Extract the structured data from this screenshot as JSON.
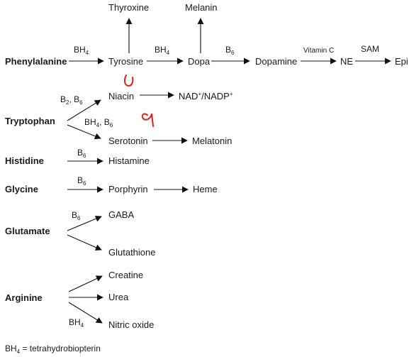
{
  "sources": {
    "phenylalanine": "Phenylalanine",
    "tryptophan": "Tryptophan",
    "histidine": "Histidine",
    "glycine": "Glycine",
    "glutamate": "Glutamate",
    "arginine": "Arginine"
  },
  "products": {
    "thyroxine": "Thyroxine",
    "melanin": "Melanin",
    "tyrosine": "Tyrosine",
    "dopa": "Dopa",
    "dopamine": "Dopamine",
    "ne": "NE",
    "epi": "Epi",
    "niacin": "Niacin",
    "nad_base": "NAD",
    "nad_sup1": "+",
    "nadp_base": "/NADP",
    "nad_sup2": "+",
    "serotonin": "Serotonin",
    "melatonin": "Melatonin",
    "histamine": "Histamine",
    "porphyrin": "Porphyrin",
    "heme": "Heme",
    "gaba": "GABA",
    "glutathione": "Glutathione",
    "creatine": "Creatine",
    "urea": "Urea",
    "nitric_oxide": "Nitric oxide"
  },
  "cofactors": {
    "bh4_a": {
      "base": "BH",
      "sub": "4"
    },
    "bh4_b": {
      "base": "BH",
      "sub": "4"
    },
    "b6_dopa": {
      "base": "B",
      "sub": "6"
    },
    "vitamin_c": "Vitamin C",
    "sam": "SAM",
    "b2_b6": {
      "base1": "B",
      "sub1": "2",
      "sep": ", B",
      "sub2": "6"
    },
    "bh4_b6": {
      "base1": "BH",
      "sub1": "4",
      "sep": ", B",
      "sub2": "6"
    },
    "b6_histidine": {
      "base": "B",
      "sub": "6"
    },
    "b6_glycine": {
      "base": "B",
      "sub": "6"
    },
    "b6_glutamate": {
      "base": "B",
      "sub": "6"
    },
    "bh4_arginine": {
      "base": "BH",
      "sub": "4"
    }
  },
  "footnote": {
    "base": "BH",
    "sub": "4",
    "rest": " = tetrahydrobiopterin"
  },
  "colors": {
    "ink": "#1a1a1a",
    "annotation": "#e0201c"
  }
}
